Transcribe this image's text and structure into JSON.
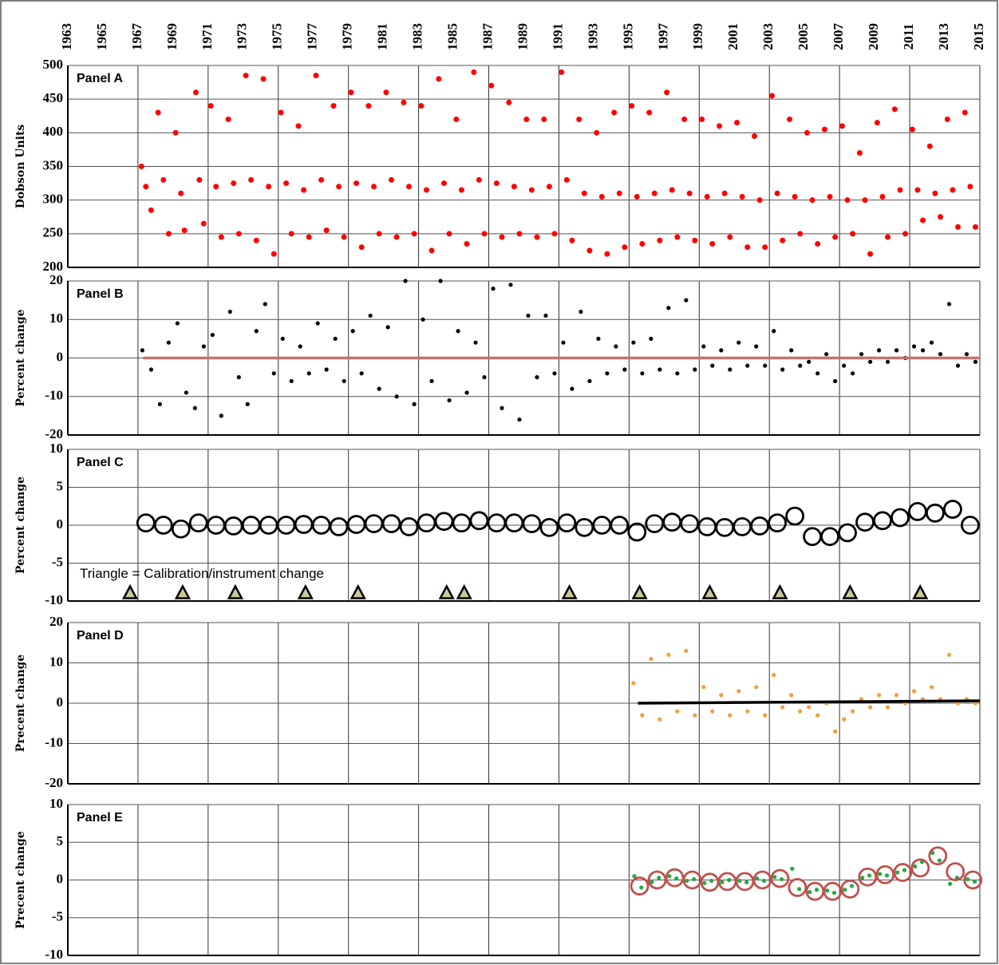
{
  "chart_data": [
    {
      "type": "scatter",
      "label": "Panel A",
      "ylabel": "Dobson Units",
      "xlim": [
        1963,
        2015
      ],
      "xticks": [
        1963,
        1965,
        1967,
        1969,
        1971,
        1973,
        1975,
        1977,
        1979,
        1981,
        1983,
        1985,
        1987,
        1989,
        1991,
        1993,
        1995,
        1997,
        1999,
        2001,
        2003,
        2005,
        2007,
        2009,
        2011,
        2013,
        2015
      ],
      "ylim": [
        200,
        500
      ],
      "yticks": [
        200,
        250,
        300,
        350,
        400,
        450,
        500
      ],
      "grid": true,
      "series": [
        {
          "marker": "dot",
          "color": "#ff0000",
          "x": [
            1967.2,
            1967.45,
            1967.75,
            1968.15,
            1968.45,
            1968.75,
            1969.15,
            1969.45,
            1969.65,
            1970.3,
            1970.5,
            1970.75,
            1971.15,
            1971.45,
            1971.75,
            1972.15,
            1972.45,
            1972.75,
            1973.15,
            1973.45,
            1973.75,
            1974.15,
            1974.45,
            1974.75,
            1975.15,
            1975.45,
            1975.75,
            1976.15,
            1976.45,
            1976.75,
            1977.15,
            1977.45,
            1977.75,
            1978.15,
            1978.45,
            1978.75,
            1979.15,
            1979.45,
            1979.75,
            1980.15,
            1980.45,
            1980.75,
            1981.15,
            1981.45,
            1981.75,
            1982.15,
            1982.45,
            1982.75,
            1983.15,
            1983.45,
            1983.75,
            1984.15,
            1984.45,
            1984.75,
            1985.15,
            1985.45,
            1985.75,
            1986.15,
            1986.45,
            1986.75,
            1987.15,
            1987.45,
            1987.75,
            1988.15,
            1988.45,
            1988.75,
            1989.15,
            1989.45,
            1989.75,
            1990.15,
            1990.45,
            1990.75,
            1991.15,
            1991.45,
            1991.75,
            1992.15,
            1992.45,
            1992.75,
            1993.15,
            1993.45,
            1993.75,
            1994.15,
            1994.45,
            1994.75,
            1995.15,
            1995.45,
            1995.75,
            1996.15,
            1996.45,
            1996.75,
            1997.15,
            1997.45,
            1997.75,
            1998.15,
            1998.45,
            1998.75,
            1999.15,
            1999.45,
            1999.75,
            2000.15,
            2000.45,
            2000.75,
            2001.15,
            2001.45,
            2001.75,
            2002.15,
            2002.45,
            2002.75,
            2003.15,
            2003.45,
            2003.75,
            2004.15,
            2004.45,
            2004.75,
            2005.15,
            2005.45,
            2005.75,
            2006.15,
            2006.45,
            2006.75,
            2007.15,
            2007.45,
            2007.75,
            2008.15,
            2008.45,
            2008.75,
            2009.15,
            2009.45,
            2009.75,
            2010.15,
            2010.45,
            2010.75,
            2011.15,
            2011.45,
            2011.75,
            2012.15,
            2012.45,
            2012.75,
            2013.15,
            2013.45,
            2013.75,
            2014.15,
            2014.45,
            2014.75
          ],
          "values": [
            350,
            320,
            285,
            430,
            330,
            250,
            400,
            310,
            255,
            460,
            330,
            265,
            440,
            320,
            245,
            420,
            325,
            250,
            485,
            330,
            240,
            480,
            320,
            220,
            430,
            325,
            250,
            410,
            315,
            245,
            485,
            330,
            255,
            440,
            320,
            245,
            460,
            325,
            230,
            440,
            320,
            250,
            460,
            330,
            245,
            445,
            320,
            250,
            440,
            315,
            225,
            480,
            325,
            250,
            420,
            315,
            235,
            490,
            330,
            250,
            470,
            325,
            245,
            445,
            320,
            250,
            420,
            315,
            245,
            420,
            320,
            250,
            490,
            330,
            240,
            420,
            310,
            225,
            400,
            305,
            220,
            430,
            310,
            230,
            440,
            305,
            235,
            430,
            310,
            240,
            460,
            315,
            245,
            420,
            310,
            240,
            420,
            305,
            235,
            410,
            310,
            245,
            415,
            305,
            230,
            395,
            300,
            230,
            455,
            310,
            240,
            420,
            305,
            250,
            400,
            300,
            235,
            405,
            305,
            245,
            410,
            300,
            250,
            370,
            300,
            220,
            415,
            305,
            245,
            435,
            315,
            250,
            405,
            315,
            270,
            380,
            310,
            275,
            420,
            315,
            260,
            430,
            320,
            260
          ]
        }
      ]
    },
    {
      "type": "scatter",
      "label": "Panel B",
      "ylabel": "Percent change",
      "xlim": [
        1963,
        2015
      ],
      "ylim": [
        -20,
        20
      ],
      "yticks": [
        -20,
        -10,
        0,
        10,
        20
      ],
      "grid": true,
      "series": [
        {
          "marker": "small-dot",
          "color": "#000000",
          "x": [
            1967.25,
            1967.75,
            1968.25,
            1968.75,
            1969.25,
            1969.75,
            1970.25,
            1970.75,
            1971.25,
            1971.75,
            1972.25,
            1972.75,
            1973.25,
            1973.75,
            1974.25,
            1974.75,
            1975.25,
            1975.75,
            1976.25,
            1976.75,
            1977.25,
            1977.75,
            1978.25,
            1978.75,
            1979.25,
            1979.75,
            1980.25,
            1980.75,
            1981.25,
            1981.75,
            1982.25,
            1982.75,
            1983.25,
            1983.75,
            1984.25,
            1984.75,
            1985.25,
            1985.75,
            1986.25,
            1986.75,
            1987.25,
            1987.75,
            1988.25,
            1988.75,
            1989.25,
            1989.75,
            1990.25,
            1990.75,
            1991.25,
            1991.75,
            1992.25,
            1992.75,
            1993.25,
            1993.75,
            1994.25,
            1994.75,
            1995.25,
            1995.75,
            1996.25,
            1996.75,
            1997.25,
            1997.75,
            1998.25,
            1998.75,
            1999.25,
            1999.75,
            2000.25,
            2000.75,
            2001.25,
            2001.75,
            2002.25,
            2002.75,
            2003.25,
            2003.75,
            2004.25,
            2004.75,
            2005.25,
            2005.75,
            2006.25,
            2006.75,
            2007.25,
            2007.75,
            2008.25,
            2008.75,
            2009.25,
            2009.75,
            2010.25,
            2010.75,
            2011.25,
            2011.75,
            2012.25,
            2012.75,
            2013.25,
            2013.75,
            2014.25,
            2014.75
          ],
          "values": [
            2,
            -3,
            -12,
            4,
            9,
            -9,
            -13,
            3,
            6,
            -15,
            12,
            -5,
            -12,
            7,
            14,
            -4,
            5,
            -6,
            3,
            -4,
            9,
            -3,
            5,
            -6,
            7,
            -4,
            11,
            -8,
            8,
            -10,
            20,
            -12,
            10,
            -6,
            20,
            -11,
            7,
            -9,
            4,
            -5,
            18,
            -13,
            19,
            -16,
            11,
            -5,
            11,
            -4,
            4,
            -8,
            12,
            -6,
            5,
            -4,
            3,
            -3,
            4,
            -4,
            5,
            -3,
            13,
            -4,
            15,
            -3,
            3,
            -2,
            2,
            -3,
            4,
            -2,
            3,
            -2,
            7,
            -3,
            2,
            -2,
            -1,
            -4,
            1,
            -6,
            -2,
            -4,
            1,
            -1,
            2,
            -1,
            2,
            0,
            3,
            2,
            4,
            1,
            14,
            -2,
            1,
            -1
          ]
        },
        {
          "marker": "line",
          "color": "#c87070",
          "x": [
            1967.3,
            2015
          ],
          "values": [
            0,
            0
          ]
        }
      ]
    },
    {
      "type": "scatter",
      "label": "Panel C",
      "ylabel": "Percent change",
      "note": "Triangle = Calibration/instrument change",
      "xlim": [
        1963,
        2015
      ],
      "ylim": [
        -10,
        10
      ],
      "yticks": [
        -10,
        -5,
        0,
        5,
        10
      ],
      "grid": true,
      "series": [
        {
          "marker": "ring",
          "color": "#000000",
          "x": [
            1967.45,
            1968.45,
            1969.45,
            1970.45,
            1971.45,
            1972.45,
            1973.45,
            1974.45,
            1975.45,
            1976.45,
            1977.45,
            1978.45,
            1979.45,
            1980.45,
            1981.45,
            1982.45,
            1983.45,
            1984.45,
            1985.45,
            1986.45,
            1987.45,
            1988.45,
            1989.45,
            1990.45,
            1991.45,
            1992.45,
            1993.45,
            1994.45,
            1995.45,
            1996.45,
            1997.45,
            1998.45,
            1999.45,
            2000.45,
            2001.45,
            2002.45,
            2003.45,
            2004.45,
            2005.45,
            2006.45,
            2007.45,
            2008.45,
            2009.45,
            2010.45,
            2011.45,
            2012.45,
            2013.45,
            2014.45
          ],
          "values": [
            0.3,
            0,
            -0.5,
            0.3,
            0,
            -0.1,
            0,
            0,
            0,
            0.1,
            0,
            -0.2,
            0.1,
            0.2,
            0.2,
            -0.2,
            0.3,
            0.5,
            0.3,
            0.6,
            0.3,
            0.3,
            0.2,
            -0.3,
            0.3,
            -0.3,
            0,
            0,
            -0.9,
            0.2,
            0.4,
            0.2,
            -0.2,
            -0.3,
            -0.2,
            -0.1,
            0.3,
            1.2,
            -1.5,
            -1.5,
            -1,
            0.4,
            0.6,
            1,
            1.8,
            1.6,
            2.1,
            0
          ]
        },
        {
          "marker": "triangle",
          "color": "#c8c89a",
          "x": [
            1966.55,
            1969.55,
            1972.55,
            1976.55,
            1979.55,
            1984.6,
            1985.6,
            1991.6,
            1995.6,
            1999.6,
            2003.6,
            2007.6,
            2011.6
          ],
          "values": [
            -9,
            -9,
            -9,
            -9,
            -9,
            -9,
            -9,
            -9,
            -9,
            -9,
            -9,
            -9,
            -9
          ]
        }
      ]
    },
    {
      "type": "scatter",
      "label": "Panel D",
      "ylabel": "Precent change",
      "xlim": [
        1963,
        2015
      ],
      "ylim": [
        -20,
        20
      ],
      "yticks": [
        -20,
        -10,
        0,
        10,
        20
      ],
      "grid": true,
      "series": [
        {
          "marker": "small-dot",
          "color": "#f0a040",
          "x": [
            1995.25,
            1995.75,
            1996.25,
            1996.75,
            1997.25,
            1997.75,
            1998.25,
            1998.75,
            1999.25,
            1999.75,
            2000.25,
            2000.75,
            2001.25,
            2001.75,
            2002.25,
            2002.75,
            2003.25,
            2003.75,
            2004.25,
            2004.75,
            2005.25,
            2005.75,
            2006.25,
            2006.75,
            2007.25,
            2007.75,
            2008.25,
            2008.75,
            2009.25,
            2009.75,
            2010.25,
            2010.75,
            2011.25,
            2011.75,
            2012.25,
            2012.75,
            2013.25,
            2013.75,
            2014.25,
            2014.75
          ],
          "values": [
            5,
            -3,
            11,
            -4,
            12,
            -2,
            13,
            -3,
            4,
            -2,
            2,
            -3,
            3,
            -2,
            4,
            -3,
            7,
            -1,
            2,
            -2,
            -1,
            -3,
            0,
            -7,
            -4,
            -2,
            1,
            -1,
            2,
            -1,
            2,
            0,
            3,
            1,
            4,
            1,
            12,
            0,
            1,
            0
          ]
        },
        {
          "marker": "line",
          "color": "#000000",
          "x": [
            1995.5,
            2015
          ],
          "values": [
            0,
            0.6
          ]
        }
      ]
    },
    {
      "type": "scatter",
      "label": "Panel E",
      "ylabel": "Precent change",
      "xlim": [
        1963,
        2015
      ],
      "ylim": [
        -10,
        10
      ],
      "yticks": [
        -10,
        -5,
        0,
        5,
        10
      ],
      "grid": true,
      "series": [
        {
          "marker": "small-dot",
          "color": "#22aa44",
          "x": [
            1995.3,
            1995.7,
            1996.3,
            1996.7,
            1997.3,
            1997.7,
            1998.3,
            1998.7,
            1999.3,
            1999.7,
            2000.3,
            2000.7,
            2001.3,
            2001.7,
            2002.3,
            2002.7,
            2003.3,
            2003.7,
            2004.3,
            2004.7,
            2005.3,
            2005.7,
            2006.3,
            2006.7,
            2007.3,
            2007.7,
            2008.3,
            2008.7,
            2009.3,
            2009.7,
            2010.3,
            2010.7,
            2011.3,
            2011.7,
            2012.3,
            2012.7,
            2013.3,
            2013.7,
            2014.3,
            2014.7
          ],
          "values": [
            0.5,
            -1,
            -0.3,
            0.3,
            0.5,
            0.2,
            -0.1,
            0.1,
            -0.4,
            -0.1,
            -0.3,
            0,
            -0.1,
            -0.3,
            0.2,
            -0.1,
            0.4,
            0.1,
            1.5,
            -1.2,
            -1.6,
            -1.3,
            -1.4,
            -1.7,
            -1.3,
            -0.8,
            0.3,
            0.6,
            0.8,
            0.6,
            1,
            1.3,
            1.8,
            2.4,
            3.6,
            2.6,
            -0.5,
            0.3,
            0.1,
            -0.2
          ]
        },
        {
          "marker": "ring",
          "color": "#c0504d",
          "x": [
            1995.6,
            1996.6,
            1997.6,
            1998.6,
            1999.6,
            2000.6,
            2001.6,
            2002.6,
            2003.6,
            2004.6,
            2005.6,
            2006.6,
            2007.6,
            2008.6,
            2009.6,
            2010.6,
            2011.6,
            2012.6,
            2013.6,
            2014.6
          ],
          "values": [
            -0.8,
            0,
            0.3,
            0,
            -0.3,
            -0.2,
            -0.2,
            0,
            0.2,
            -1,
            -1.5,
            -1.5,
            -1.2,
            0.4,
            0.7,
            1,
            1.6,
            3.2,
            1.1,
            0
          ]
        }
      ]
    }
  ]
}
